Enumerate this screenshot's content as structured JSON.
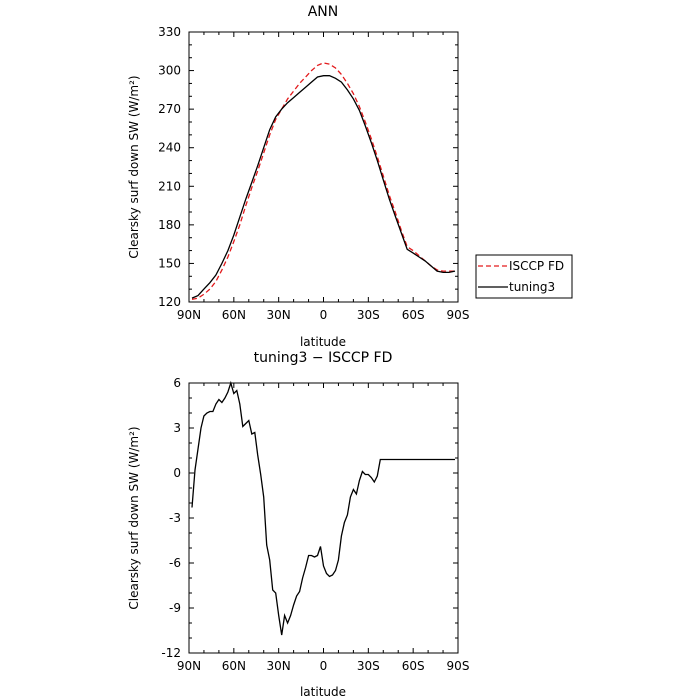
{
  "chart_data": [
    {
      "type": "line",
      "title": "ANN",
      "xlabel": "latitude",
      "ylabel": "Clearsky surf down SW (W/m²)",
      "xlim": [
        -90,
        90
      ],
      "ylim": [
        120,
        330
      ],
      "xticks": [
        {
          "value": -90,
          "label": "90N"
        },
        {
          "value": -60,
          "label": "60N"
        },
        {
          "value": -30,
          "label": "30N"
        },
        {
          "value": 0,
          "label": "0"
        },
        {
          "value": 30,
          "label": "30S"
        },
        {
          "value": 60,
          "label": "60S"
        },
        {
          "value": 90,
          "label": "90S"
        }
      ],
      "yticks": [
        120,
        150,
        180,
        210,
        240,
        270,
        300,
        330
      ],
      "legend_position": "right",
      "series": [
        {
          "name": "ISCCP FD",
          "color": "#e31a1c",
          "dash": "dashed",
          "x": [
            -88,
            -84,
            -80,
            -76,
            -72,
            -68,
            -64,
            -60,
            -56,
            -52,
            -48,
            -44,
            -40,
            -36,
            -32,
            -28,
            -24,
            -20,
            -16,
            -12,
            -8,
            -4,
            0,
            4,
            8,
            12,
            16,
            20,
            24,
            28,
            32,
            36,
            40,
            44,
            48,
            52,
            56,
            60,
            64,
            68,
            72,
            76,
            80,
            84,
            88
          ],
          "values": [
            122,
            123,
            126,
            130,
            136,
            145,
            155,
            167,
            180,
            195,
            209,
            222,
            236,
            250,
            262,
            270,
            278,
            284,
            290,
            295,
            300,
            304,
            306,
            305,
            302,
            297,
            290,
            282,
            272,
            260,
            247,
            233,
            218,
            203,
            190,
            176,
            163,
            160,
            156,
            152,
            148,
            145,
            144,
            144,
            144
          ]
        },
        {
          "name": "tuning3",
          "color": "#000000",
          "dash": "solid",
          "x": [
            -88,
            -84,
            -80,
            -76,
            -72,
            -68,
            -64,
            -60,
            -56,
            -52,
            -48,
            -44,
            -40,
            -36,
            -32,
            -28,
            -24,
            -20,
            -16,
            -12,
            -8,
            -4,
            0,
            4,
            8,
            12,
            16,
            20,
            24,
            28,
            32,
            36,
            40,
            44,
            48,
            52,
            56,
            60,
            64,
            68,
            72,
            76,
            80,
            84,
            88
          ],
          "values": [
            123,
            125,
            130,
            135,
            141,
            150,
            160,
            172,
            186,
            200,
            213,
            226,
            240,
            254,
            264,
            270,
            275,
            279,
            283,
            287,
            291,
            295,
            296,
            296,
            294,
            291,
            285,
            278,
            269,
            257,
            244,
            230,
            215,
            200,
            187,
            174,
            161,
            158,
            155,
            152,
            148,
            144,
            143,
            143,
            144
          ]
        }
      ]
    },
    {
      "type": "line",
      "title": "tuning3 − ISCCP FD",
      "xlabel": "latitude",
      "ylabel": "Clearsky surf down SW (W/m²)",
      "xlim": [
        -90,
        90
      ],
      "ylim": [
        -12,
        6
      ],
      "xticks": [
        {
          "value": -90,
          "label": "90N"
        },
        {
          "value": -60,
          "label": "60N"
        },
        {
          "value": -30,
          "label": "30N"
        },
        {
          "value": 0,
          "label": "0"
        },
        {
          "value": 30,
          "label": "30S"
        },
        {
          "value": 60,
          "label": "60S"
        },
        {
          "value": 90,
          "label": "90S"
        }
      ],
      "yticks": [
        -12,
        -9,
        -6,
        -3,
        0,
        3,
        6
      ],
      "series": [
        {
          "color": "#000000",
          "dash": "solid",
          "x": [
            -88,
            -86,
            -84,
            -82,
            -80,
            -78,
            -76,
            -74,
            -72,
            -70,
            -68,
            -66,
            -64,
            -62,
            -60,
            -58,
            -56,
            -54,
            -52,
            -50,
            -48,
            -46,
            -44,
            -42,
            -40,
            -38,
            -36,
            -34,
            -32,
            -30,
            -28,
            -26,
            -24,
            -22,
            -20,
            -18,
            -16,
            -14,
            -12,
            -10,
            -8,
            -6,
            -4,
            -2,
            0,
            2,
            4,
            6,
            8,
            10,
            12,
            14,
            16,
            18,
            20,
            22,
            24,
            26,
            28,
            30,
            32,
            34,
            36,
            38,
            40,
            42,
            44,
            46,
            48,
            50,
            52,
            54,
            56,
            58,
            60,
            62,
            64,
            66,
            68,
            70,
            72,
            74,
            76,
            78,
            80,
            82,
            84,
            86,
            88
          ],
          "values": [
            -2.3,
            0.2,
            1.6,
            3.0,
            3.8,
            4.0,
            4.1,
            4.1,
            4.6,
            4.9,
            4.7,
            5.0,
            5.4,
            6.0,
            5.3,
            5.5,
            4.6,
            3.1,
            3.3,
            3.5,
            2.6,
            2.7,
            1.2,
            -0.1,
            -1.6,
            -4.8,
            -5.8,
            -7.8,
            -8.0,
            -9.5,
            -10.8,
            -9.5,
            -10.0,
            -9.5,
            -8.8,
            -8.2,
            -7.9,
            -7.0,
            -6.3,
            -5.5,
            -5.5,
            -5.6,
            -5.5,
            -4.9,
            -6.2,
            -6.7,
            -6.9,
            -6.8,
            -6.5,
            -5.8,
            -4.2,
            -3.3,
            -2.8,
            -1.6,
            -1.1,
            -1.4,
            -0.5,
            0.1,
            -0.1,
            -0.1,
            -0.3,
            -0.6,
            -0.2,
            0.9,
            0.9,
            0.9,
            0.9,
            0.9,
            0.9,
            0.9,
            0.9,
            0.9,
            0.9,
            0.9,
            0.9,
            0.9,
            0.9,
            0.9,
            0.9,
            0.9,
            0.9,
            0.9,
            0.9,
            0.9,
            0.9,
            0.9,
            0.9,
            0.9,
            0.9
          ]
        }
      ]
    }
  ]
}
